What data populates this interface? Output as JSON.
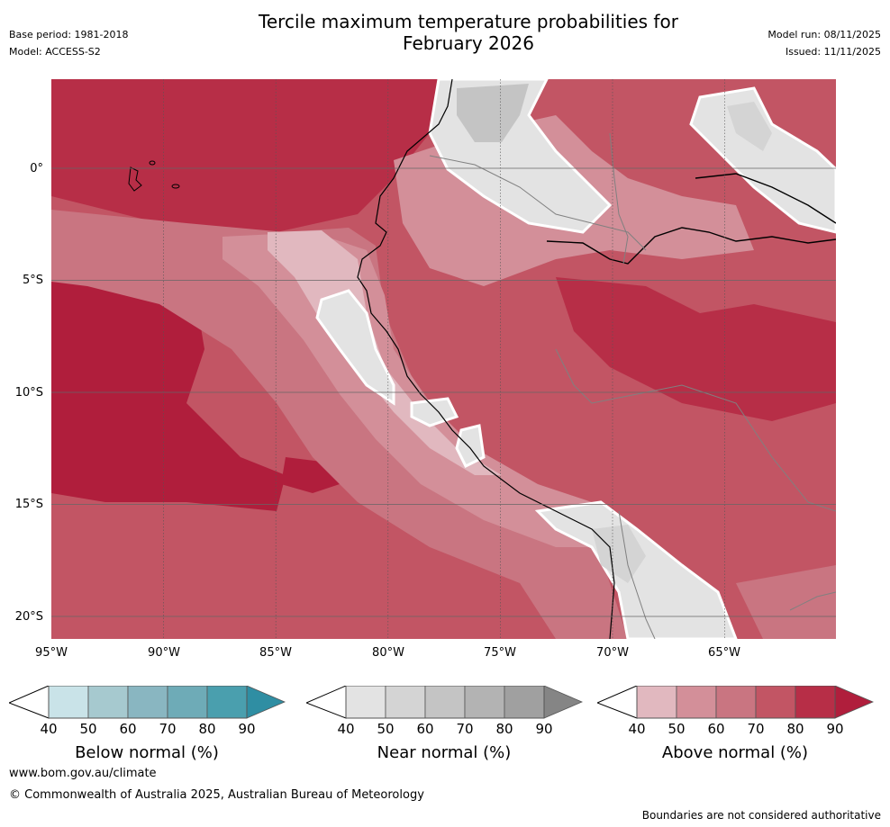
{
  "header": {
    "base_period": "Base period: 1981-2018",
    "model": "Model: ACCESS-S2",
    "title_line1": "Tercile maximum temperature probabilities for",
    "title_line2": "February 2026",
    "model_run": "Model run: 08/11/2025",
    "issued": "Issued: 11/11/2025"
  },
  "map": {
    "lat_labels": [
      "0°",
      "5°S",
      "10°S",
      "15°S",
      "20°S"
    ],
    "lon_labels": [
      "95°W",
      "90°W",
      "85°W",
      "80°W",
      "75°W",
      "70°W",
      "65°W"
    ]
  },
  "legends": [
    {
      "title": "Below normal (%)",
      "ticks": [
        "40",
        "50",
        "60",
        "70",
        "80",
        "90"
      ],
      "colors": [
        "#c9e3e8",
        "#a6c9cf",
        "#89b6c1",
        "#6eabb7",
        "#4a9fae",
        "#2f8ea3"
      ]
    },
    {
      "title": "Near normal (%)",
      "ticks": [
        "40",
        "50",
        "60",
        "70",
        "80",
        "90"
      ],
      "colors": [
        "#e3e3e3",
        "#d4d4d4",
        "#c4c4c4",
        "#b3b3b3",
        "#a0a0a0",
        "#858585"
      ]
    },
    {
      "title": "Above normal (%)",
      "ticks": [
        "40",
        "50",
        "60",
        "70",
        "80",
        "90"
      ],
      "colors": [
        "#e1b8bf",
        "#d38f99",
        "#c97581",
        "#c25564",
        "#b72e47",
        "#b01e3c"
      ]
    }
  ],
  "footer": {
    "url": "www.bom.gov.au/climate",
    "copyright": "© Commonwealth of Australia 2025, Australian Bureau of Meteorology",
    "disclaimer": "Boundaries are not considered authoritative"
  }
}
